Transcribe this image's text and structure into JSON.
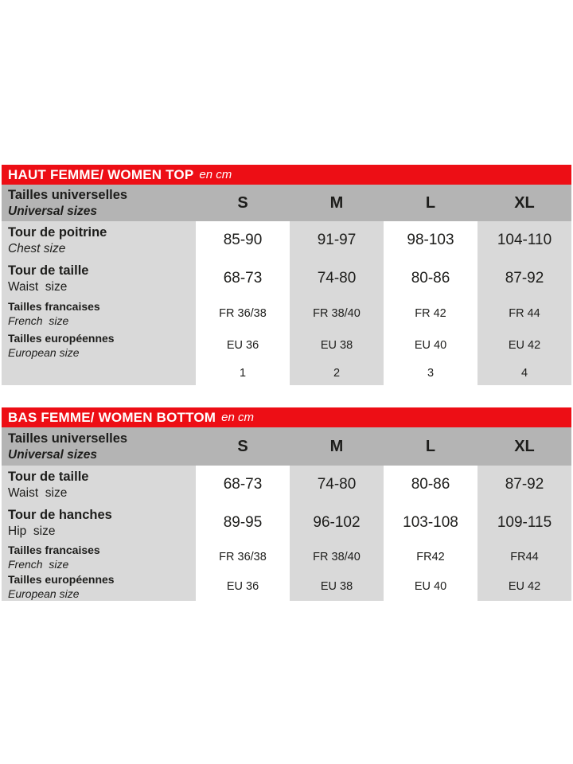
{
  "colors": {
    "accent_red": "#ed0e15",
    "header_gray": "#b4b4b4",
    "cell_gray": "#d9d9d9",
    "text": "#1d1d1b",
    "white_column": "#ffffff"
  },
  "tables": [
    {
      "title": "HAUT FEMME/ WOMEN TOP",
      "unit": "en cm",
      "header": {
        "label": "Tailles universelles",
        "sublabel": "Universal sizes",
        "sizes": [
          "S",
          "M",
          "L",
          "XL"
        ]
      },
      "rows": [
        {
          "label": "Tour de poitrine",
          "sublabel": "Chest size",
          "values": [
            "85-90",
            "91-97",
            "98-103",
            "104-110"
          ]
        },
        {
          "label": "Tour de taille",
          "sublabel": "Waist  size",
          "values": [
            "68-73",
            "74-80",
            "80-86",
            "87-92"
          ]
        },
        {
          "label": "Tailles francaises",
          "sublabel": "French  size",
          "values": [
            "FR 36/38",
            "FR 38/40",
            "FR 42",
            "FR 44"
          ]
        },
        {
          "label": "Tailles européennes",
          "sublabel": "European size",
          "values": [
            "EU 36",
            "EU 38",
            "EU 40",
            "EU 42"
          ]
        },
        {
          "label": "",
          "sublabel": "",
          "values": [
            "1",
            "2",
            "3",
            "4"
          ]
        }
      ]
    },
    {
      "title": "BAS FEMME/ WOMEN BOTTOM",
      "unit": "en cm",
      "header": {
        "label": "Tailles universelles",
        "sublabel": "Universal sizes",
        "sizes": [
          "S",
          "M",
          "L",
          "XL"
        ]
      },
      "rows": [
        {
          "label": "Tour de taille",
          "sublabel": "Waist  size",
          "values": [
            "68-73",
            "74-80",
            "80-86",
            "87-92"
          ]
        },
        {
          "label": "Tour de hanches",
          "sublabel": "Hip  size",
          "values": [
            "89-95",
            "96-102",
            "103-108",
            "109-115"
          ]
        },
        {
          "label": "Tailles francaises",
          "sublabel": "French  size",
          "values": [
            "FR 36/38",
            "FR 38/40",
            "FR42",
            "FR44"
          ]
        },
        {
          "label": "Tailles européennes",
          "sublabel": "European size",
          "values": [
            "EU 36",
            "EU 38",
            "EU 40",
            "EU 42"
          ]
        }
      ]
    }
  ]
}
